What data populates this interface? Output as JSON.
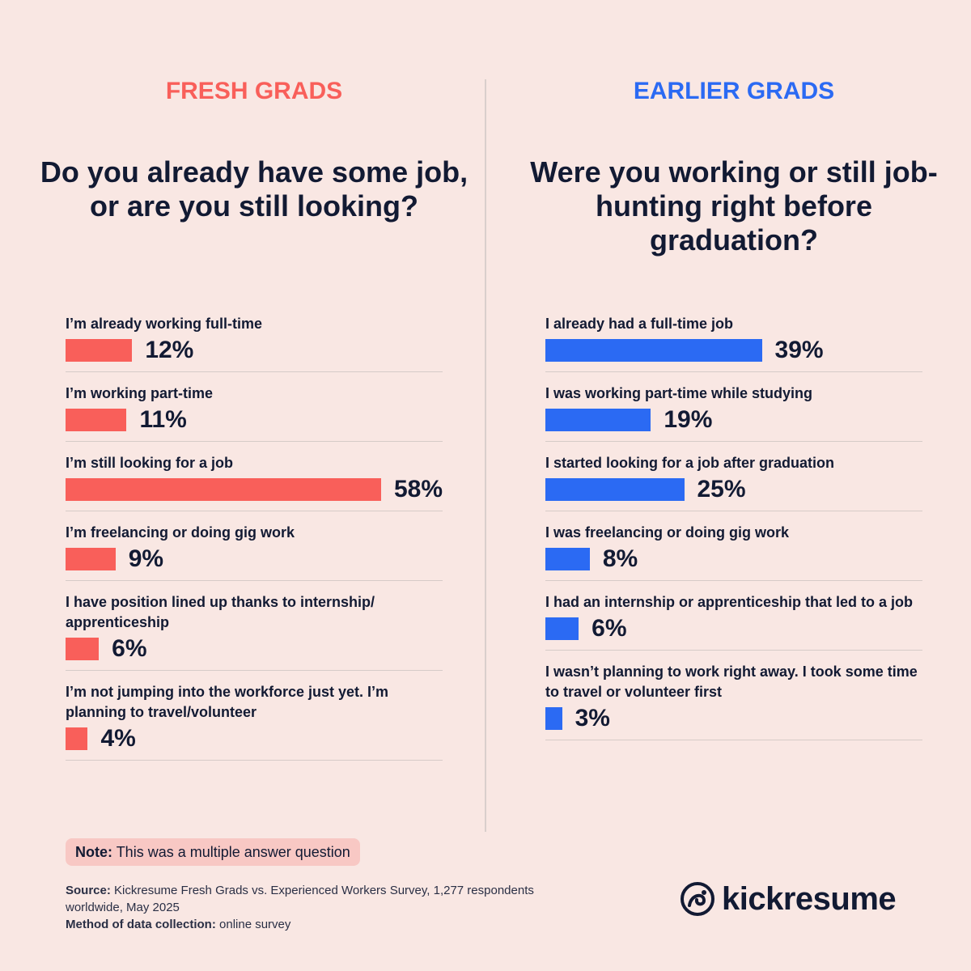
{
  "chart_data": [
    {
      "type": "bar",
      "orientation": "horizontal",
      "header": "FRESH GRADS",
      "title": "Do you already have some job, or are you still looking?",
      "color": "#f95f5a",
      "header_color": "#f95f5a",
      "categories": [
        "I’m already working full-time",
        "I’m working part-time",
        "I’m still looking for a job",
        "I’m freelancing or doing gig work",
        "I have position lined up thanks to internship/ apprenticeship",
        "I’m not jumping into the workforce just yet. I’m planning to travel/volunteer"
      ],
      "values": [
        12,
        11,
        58,
        9,
        6,
        4
      ],
      "value_labels": [
        "12%",
        "11%",
        "58%",
        "9%",
        "6%",
        "4%"
      ]
    },
    {
      "type": "bar",
      "orientation": "horizontal",
      "header": "EARLIER GRADS",
      "title": "Were you working or still job-hunting right before graduation?",
      "color": "#2b6af3",
      "header_color": "#2b6af3",
      "categories": [
        "I already had a full-time job",
        "I was working part-time while studying",
        "I started looking for a job after graduation",
        "I was freelancing or doing gig work",
        "I had an internship or apprenticeship that led to a job",
        "I wasn’t planning to work right away. I took some time to travel or volunteer first"
      ],
      "values": [
        39,
        19,
        25,
        8,
        6,
        3
      ],
      "value_labels": [
        "39%",
        "19%",
        "25%",
        "8%",
        "6%",
        "3%"
      ]
    }
  ],
  "note": {
    "label": "Note:",
    "text": "This was a multiple answer question"
  },
  "source": {
    "label": "Source:",
    "text": "Kickresume Fresh Grads vs. Experienced Workers Survey, 1,277 respondents worldwide, May 2025"
  },
  "method": {
    "label": "Method of data collection:",
    "text": "online survey"
  },
  "brand": "kickresume"
}
